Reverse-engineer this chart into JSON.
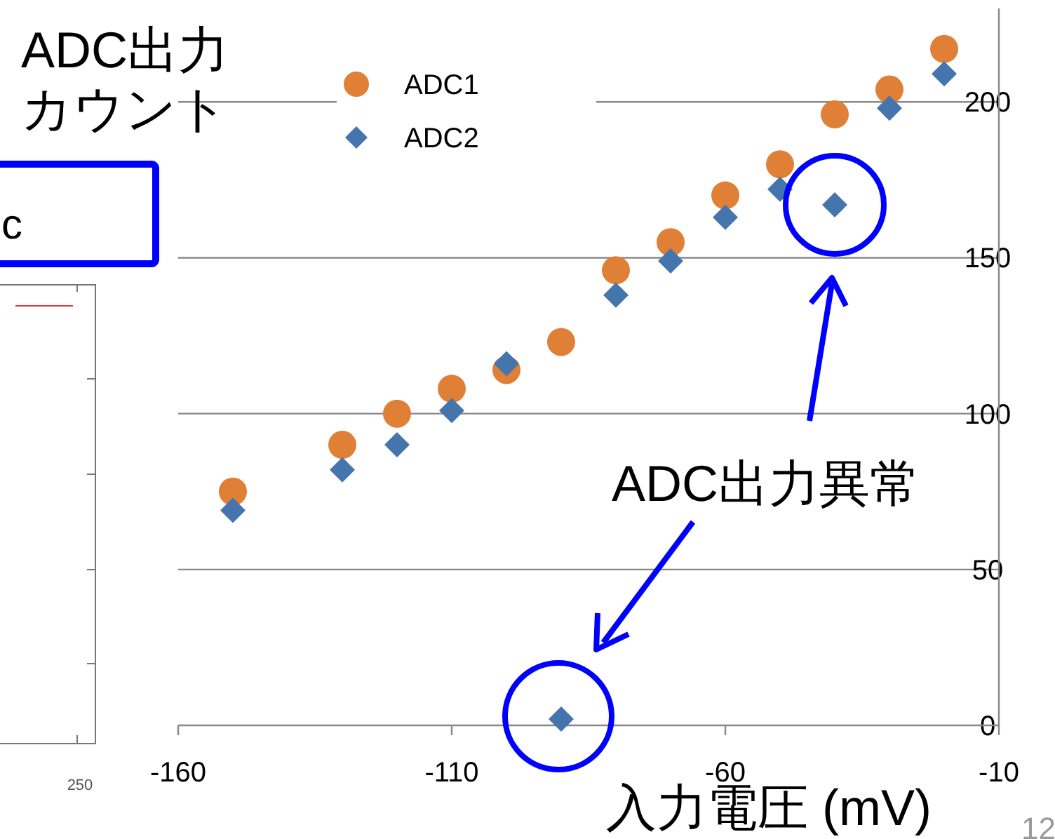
{
  "chart_data": {
    "type": "scatter",
    "xlabel": "入力電圧 (mV)",
    "ylabel": "ADC出力カウント",
    "xlim": [
      -160,
      -10
    ],
    "xticks": [
      -160,
      -110,
      -60,
      -10
    ],
    "ylim": [
      0,
      230
    ],
    "yticks": [
      0,
      50,
      100,
      150,
      200
    ],
    "grid": "y",
    "legend": "top left",
    "series": [
      {
        "name": "ADC1",
        "color": "#e07f36",
        "marker": "circle",
        "x": [
          -150,
          -130,
          -120,
          -110,
          -100,
          -90,
          -80,
          -70,
          -60,
          -50,
          -40,
          -30,
          -20
        ],
        "values": [
          75,
          90,
          100,
          108,
          114,
          123,
          146,
          155,
          170,
          180,
          196,
          204,
          217
        ]
      },
      {
        "name": "ADC2",
        "color": "#4575ad",
        "marker": "diamond",
        "x": [
          -150,
          -130,
          -120,
          -110,
          -100,
          -90,
          -80,
          -70,
          -60,
          -50,
          -40,
          -30,
          -20
        ],
        "values": [
          69,
          82,
          90,
          101,
          116,
          2,
          138,
          149,
          163,
          172,
          167,
          198,
          209
        ]
      }
    ],
    "annotations": [
      "ADC出力異常",
      "c",
      "250",
      "12"
    ]
  }
}
